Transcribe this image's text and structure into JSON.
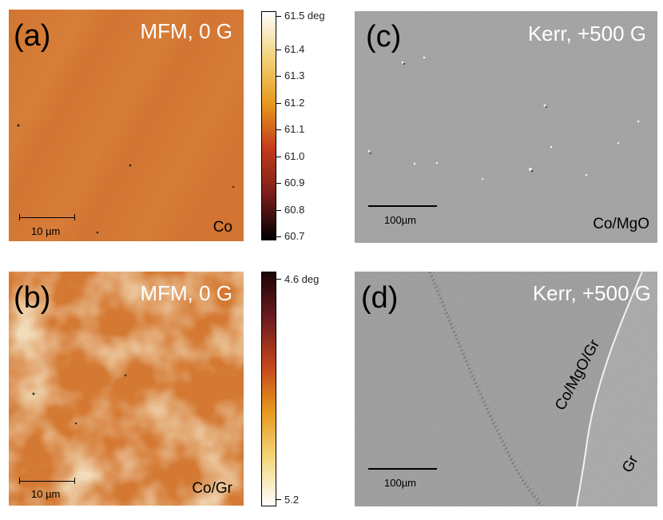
{
  "panels": {
    "a": {
      "label": "(a)",
      "title": "MFM, 0 G",
      "material": "Co",
      "scalebar": "10 µm"
    },
    "b": {
      "label": "(b)",
      "title": "MFM, 0 G",
      "material": "Co/Gr",
      "scalebar": "10 µm"
    },
    "c": {
      "label": "(c)",
      "title": "Kerr, +500 G",
      "material": "Co/MgO",
      "scalebar": "100µm"
    },
    "d": {
      "label": "(d)",
      "title": "Kerr, +500 G",
      "material_1": "Co/MgO/Gr",
      "material_2": "Gr",
      "scalebar": "100µm"
    }
  },
  "colorbar_top": {
    "ticks": [
      "61.5 deg",
      "61.4",
      "61.3",
      "61.2",
      "61.1",
      "61.0",
      "60.9",
      "60.8",
      "60.7"
    ],
    "gradient": [
      "#ffffff",
      "#f2d27a",
      "#e79a1e",
      "#c33b1b",
      "#7a1e1a",
      "#000000"
    ]
  },
  "colorbar_bottom": {
    "ticks": [
      "4.6 deg",
      "5.2"
    ],
    "gradient": [
      "#1a0506",
      "#6e1c20",
      "#c2451b",
      "#e79a1e",
      "#f4d77e",
      "#ffffff"
    ]
  },
  "colors": {
    "mfm_base": "#d36a2c",
    "kerr_base": "#9c9c9c"
  }
}
